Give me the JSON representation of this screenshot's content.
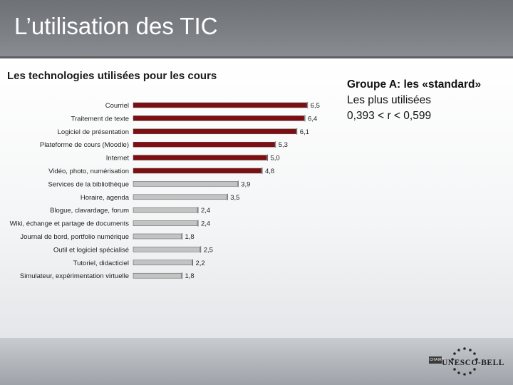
{
  "slide": {
    "title": "L’utilisation des TIC"
  },
  "side": {
    "heading": "Groupe A: les «standard»",
    "line1": "Les plus utilisées",
    "line2": "0,393 < r < 0,599"
  },
  "logo": {
    "top_text": "CHAIRE",
    "name": "UNESCO-BELL"
  },
  "colors": {
    "dark_red": "#7d0f13",
    "gray": "#c3c3c3",
    "bar_edge": "#555555"
  },
  "chart_data": {
    "type": "bar",
    "orientation": "horizontal",
    "title": "Les technologies utilisées pour les cours",
    "categories": [
      "Courriel",
      "Traitement de texte",
      "Logiciel de présentation",
      "Plateforme de cours (Moodle)",
      "Internet",
      "Vidéo, photo, numérisation",
      "Services de la bibliothèque",
      "Horaire, agenda",
      "Blogue, clavardage, forum",
      "Wiki, échange et partage de documents",
      "Journal de bord, portfolio numérique",
      "Outil et logiciel spécialisé",
      "Tutoriel, didacticiel",
      "Simulateur, expérimentation virtuelle"
    ],
    "values": [
      6.5,
      6.4,
      6.1,
      5.3,
      5.0,
      4.8,
      3.9,
      3.5,
      2.4,
      2.4,
      1.8,
      2.5,
      2.2,
      1.8
    ],
    "data_labels": [
      "6,5",
      "6,4",
      "6,1",
      "5,3",
      "5,0",
      "4,8",
      "3,9",
      "3,5",
      "2,4",
      "2,4",
      "1,8",
      "2,5",
      "2,2",
      "1,8"
    ],
    "groups": [
      "A",
      "A",
      "A",
      "A",
      "A",
      "A",
      "B",
      "B",
      "B",
      "B",
      "B",
      "B",
      "B",
      "B"
    ],
    "xlim": [
      0,
      7
    ],
    "grid": false,
    "legend": "none"
  }
}
